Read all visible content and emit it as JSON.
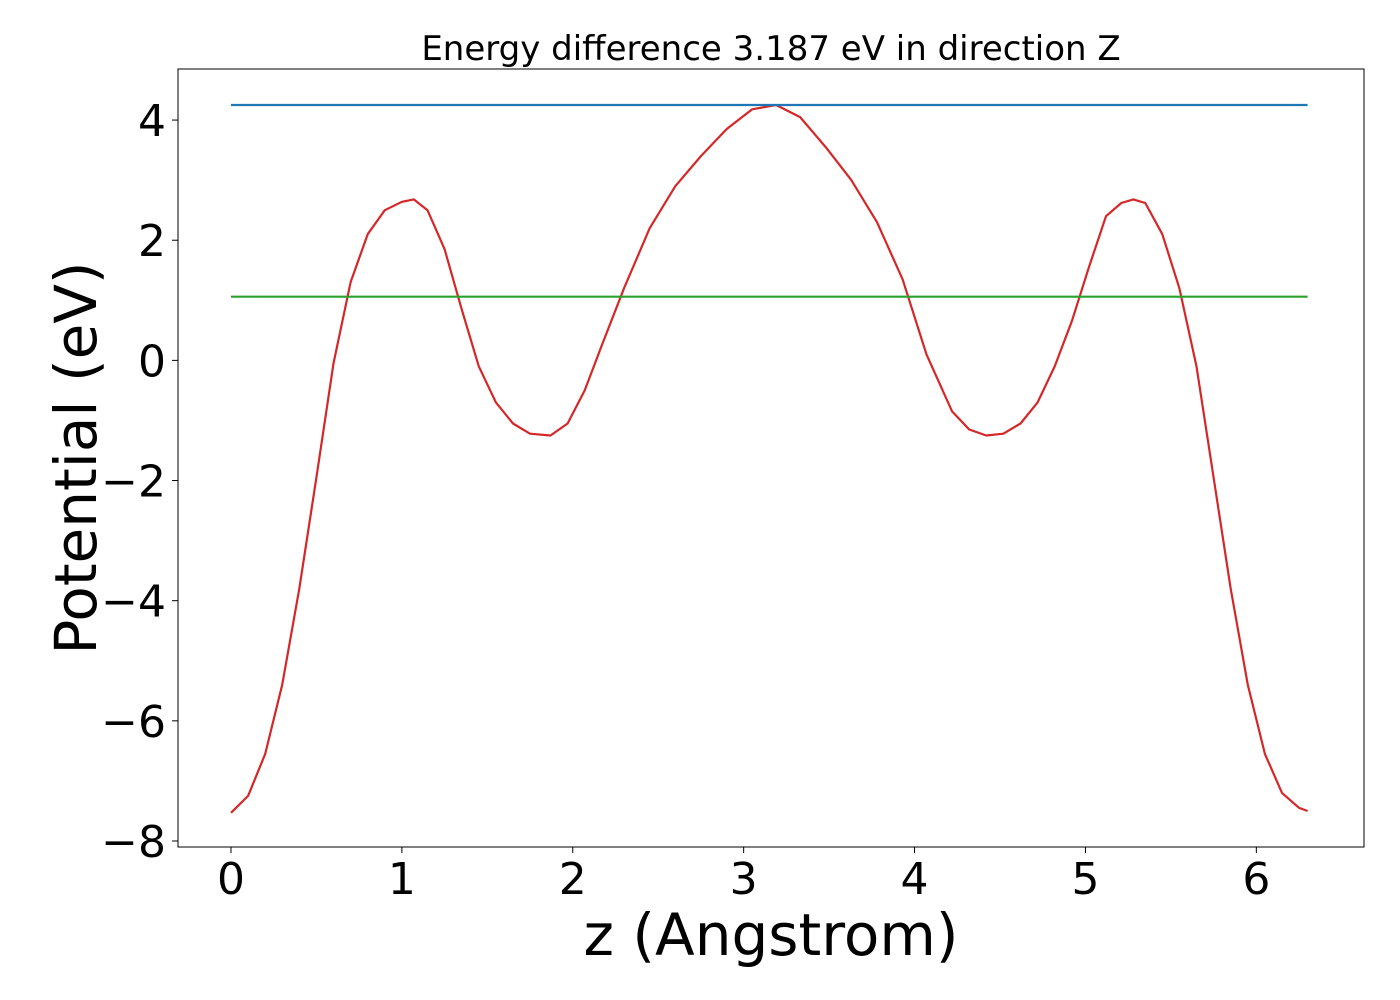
{
  "chart_data": {
    "type": "line",
    "title": "Energy difference 3.187 eV in direction Z",
    "xlabel": "z (Angstrom)",
    "ylabel": "Potential (eV)",
    "xlim": [
      -0.31,
      6.63
    ],
    "ylim": [
      -8.1,
      4.85
    ],
    "xticks": [
      0,
      1,
      2,
      3,
      4,
      5,
      6
    ],
    "yticks": [
      -8,
      -6,
      -4,
      -2,
      0,
      2,
      4
    ],
    "xtick_labels": [
      "0",
      "1",
      "2",
      "3",
      "4",
      "5",
      "6"
    ],
    "ytick_labels": [
      "−8",
      "−6",
      "−4",
      "−2",
      "0",
      "2",
      "4"
    ],
    "grid": false,
    "series": [
      {
        "color": "#d62728",
        "x": [
          0.0,
          0.1,
          0.2,
          0.3,
          0.4,
          0.5,
          0.6,
          0.7,
          0.8,
          0.9,
          1.0,
          1.07,
          1.15,
          1.25,
          1.35,
          1.45,
          1.55,
          1.65,
          1.75,
          1.87,
          1.97,
          2.07,
          2.17,
          2.3,
          2.45,
          2.6,
          2.75,
          2.9,
          3.05,
          3.19,
          3.33,
          3.48,
          3.63,
          3.78,
          3.93,
          4.07,
          4.22,
          4.32,
          4.42,
          4.52,
          4.62,
          4.72,
          4.82,
          4.92,
          5.02,
          5.12,
          5.21,
          5.28,
          5.35,
          5.45,
          5.55,
          5.65,
          5.75,
          5.85,
          5.95,
          6.05,
          6.15,
          6.25,
          6.3
        ],
        "y": [
          -7.53,
          -7.25,
          -6.55,
          -5.4,
          -3.8,
          -1.95,
          -0.05,
          1.3,
          2.1,
          2.5,
          2.64,
          2.68,
          2.5,
          1.85,
          0.85,
          -0.1,
          -0.7,
          -1.05,
          -1.22,
          -1.25,
          -1.05,
          -0.5,
          0.25,
          1.2,
          2.2,
          2.9,
          3.4,
          3.85,
          4.18,
          4.25,
          4.05,
          3.55,
          3.0,
          2.3,
          1.35,
          0.1,
          -0.85,
          -1.15,
          -1.25,
          -1.22,
          -1.05,
          -0.7,
          -0.1,
          0.65,
          1.55,
          2.4,
          2.62,
          2.68,
          2.62,
          2.1,
          1.2,
          -0.1,
          -1.95,
          -3.8,
          -5.4,
          -6.55,
          -7.2,
          -7.45,
          -7.5
        ]
      },
      {
        "color": "#1f77b4",
        "x": [
          0.0,
          6.3
        ],
        "y": [
          4.25,
          4.25
        ]
      },
      {
        "color": "#2ca02c",
        "x": [
          0.0,
          6.3
        ],
        "y": [
          1.06,
          1.06
        ]
      }
    ]
  }
}
